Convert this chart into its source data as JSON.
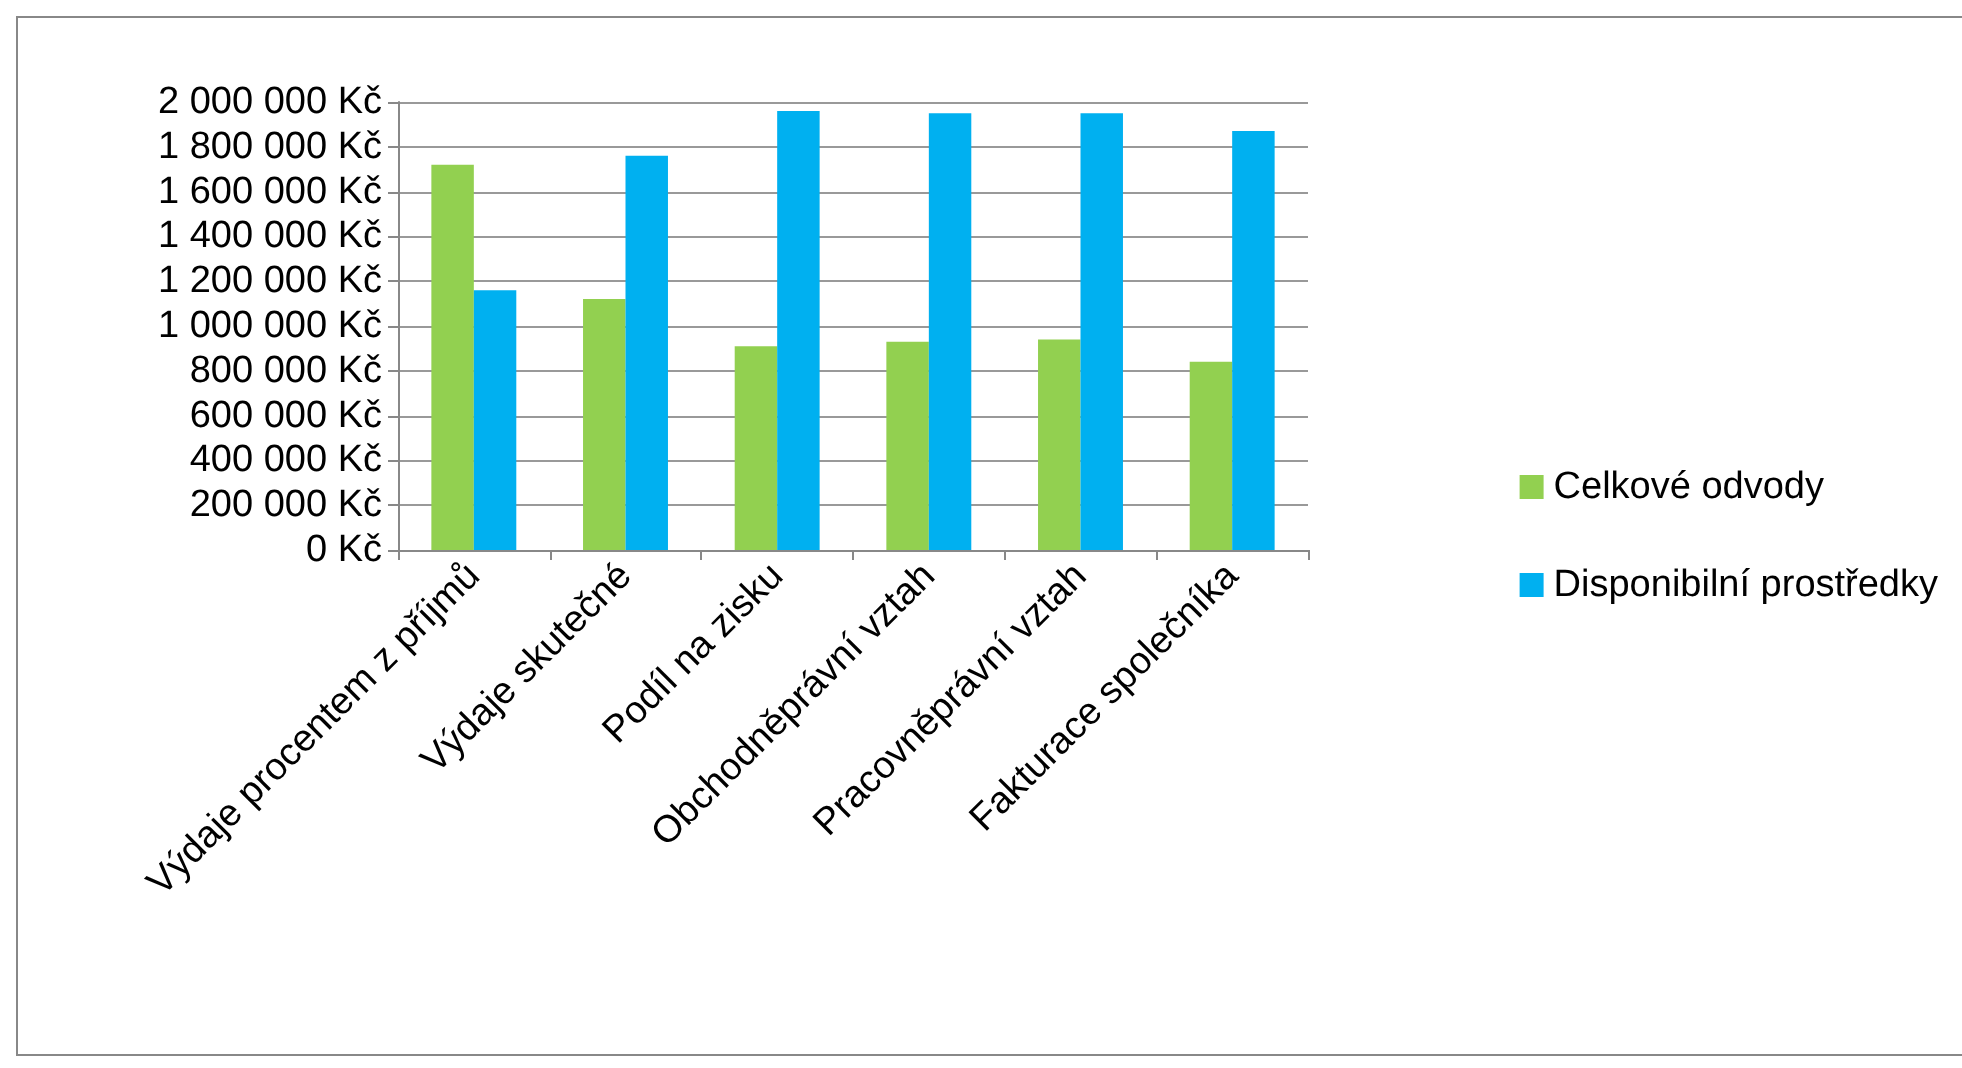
{
  "chart_data": {
    "type": "bar",
    "categories": [
      "Výdaje procentem z příjmů",
      "Výdaje skutečné",
      "Podíl na zisku",
      "Obchodněprávní vztah",
      "Pracovněprávní vztah",
      "Fakturace společníka"
    ],
    "series": [
      {
        "name": "Celkové odvody",
        "color": "#92d050",
        "values": [
          1720000,
          1120000,
          910000,
          930000,
          940000,
          840000
        ]
      },
      {
        "name": "Disponibilní prostředky",
        "color": "#00b0f0",
        "values": [
          1160000,
          1760000,
          1960000,
          1950000,
          1950000,
          1870000
        ]
      }
    ],
    "ylim": [
      0,
      2000000
    ],
    "yticks": [
      {
        "value": 0,
        "label": "0 Kč"
      },
      {
        "value": 200000,
        "label": "200 000 Kč"
      },
      {
        "value": 400000,
        "label": "400 000 Kč"
      },
      {
        "value": 600000,
        "label": "600 000 Kč"
      },
      {
        "value": 800000,
        "label": "800 000 Kč"
      },
      {
        "value": 1000000,
        "label": "1 000 000 Kč"
      },
      {
        "value": 1200000,
        "label": "1 200 000 Kč"
      },
      {
        "value": 1400000,
        "label": "1 400 000 Kč"
      },
      {
        "value": 1600000,
        "label": "1 600 000 Kč"
      },
      {
        "value": 1800000,
        "label": "1 800 000 Kč"
      },
      {
        "value": 2000000,
        "label": "2 000 000 Kč"
      }
    ],
    "grid": "y",
    "legend": "right"
  }
}
